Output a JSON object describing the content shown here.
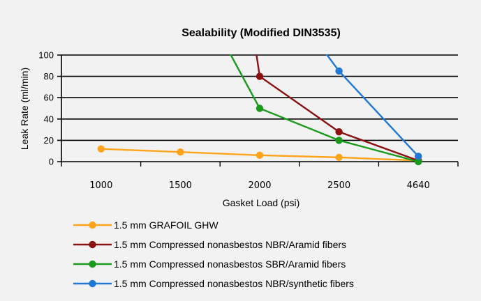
{
  "chart_data": {
    "type": "line",
    "title": "Sealability (Modified DIN3535)",
    "xlabel": "Gasket Load (psi)",
    "ylabel": "Leak Rate (ml/min)",
    "categories": [
      "1000",
      "1500",
      "2000",
      "2500",
      "4640"
    ],
    "ylim": [
      0,
      100
    ],
    "yticks": [
      0,
      20,
      40,
      60,
      80,
      100
    ],
    "grid": "horizontal",
    "legend_position": "bottom",
    "series": [
      {
        "name": "1.5 mm GRAFOIL GHW",
        "color": "#ffa31a",
        "points": [
          {
            "x": "1000",
            "y": 12
          },
          {
            "x": "1500",
            "y": 9
          },
          {
            "x": "2000",
            "y": 6
          },
          {
            "x": "2500",
            "y": 4
          },
          {
            "x": "4640",
            "y": 1
          }
        ]
      },
      {
        "name": "1.5 mm Compressed nonasbestos NBR/Aramid fibers",
        "color": "#8b1010",
        "points": [
          {
            "x": "2000",
            "y": 80
          },
          {
            "x": "2500",
            "y": 28
          },
          {
            "x": "4640",
            "y": 1
          }
        ],
        "extends_above": {
          "x": 1.95,
          "y": 105
        }
      },
      {
        "name": "1.5 mm Compressed nonasbestos SBR/Aramid fibers",
        "color": "#1a9a1a",
        "points": [
          {
            "x": "2000",
            "y": 50
          },
          {
            "x": "2500",
            "y": 20
          },
          {
            "x": "4640",
            "y": 0
          }
        ],
        "extends_above": {
          "x": 1.6,
          "y": 105
        }
      },
      {
        "name": "1.5 mm Compressed nonasbestos NBR/synthetic fibers",
        "color": "#1f78d4",
        "points": [
          {
            "x": "2500",
            "y": 85
          },
          {
            "x": "4640",
            "y": 5
          }
        ],
        "extends_above": {
          "x": 2.8,
          "y": 105
        }
      }
    ]
  }
}
